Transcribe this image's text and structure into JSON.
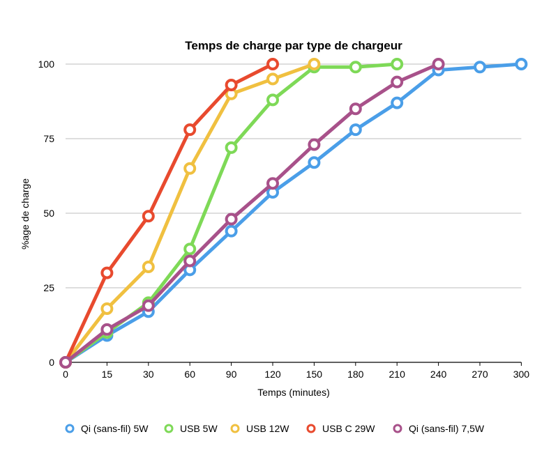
{
  "chart_data": {
    "type": "line",
    "title": "Temps de charge par type de chargeur",
    "xlabel": "Temps (minutes)",
    "ylabel": "%age de charge",
    "x_categories": [
      "0",
      "15",
      "30",
      "60",
      "90",
      "120",
      "150",
      "180",
      "210",
      "240",
      "270",
      "300"
    ],
    "y_ticks": [
      "0",
      "25",
      "50",
      "75",
      "100"
    ],
    "ylim": [
      0,
      100
    ],
    "grid": true,
    "legend_position": "bottom",
    "series": [
      {
        "name": "Qi (sans-fil) 5W",
        "color": "#4a9ee8",
        "values": [
          0,
          9,
          17,
          31,
          44,
          57,
          67,
          78,
          87,
          98,
          99,
          100
        ]
      },
      {
        "name": "USB 5W",
        "color": "#7ed957",
        "values": [
          0,
          10,
          20,
          38,
          72,
          88,
          99,
          99,
          100,
          null,
          null,
          null
        ]
      },
      {
        "name": "USB 12W",
        "color": "#f0c040",
        "values": [
          0,
          18,
          32,
          65,
          90,
          95,
          100,
          null,
          null,
          null,
          null,
          null
        ]
      },
      {
        "name": "USB C 29W",
        "color": "#e84a2e",
        "values": [
          0,
          30,
          49,
          78,
          93,
          100,
          null,
          null,
          null,
          null,
          null,
          null
        ]
      },
      {
        "name": "Qi (sans-fil) 7,5W",
        "color": "#a8518a",
        "values": [
          0,
          11,
          19,
          34,
          48,
          60,
          73,
          85,
          94,
          100,
          null,
          null
        ]
      }
    ]
  }
}
